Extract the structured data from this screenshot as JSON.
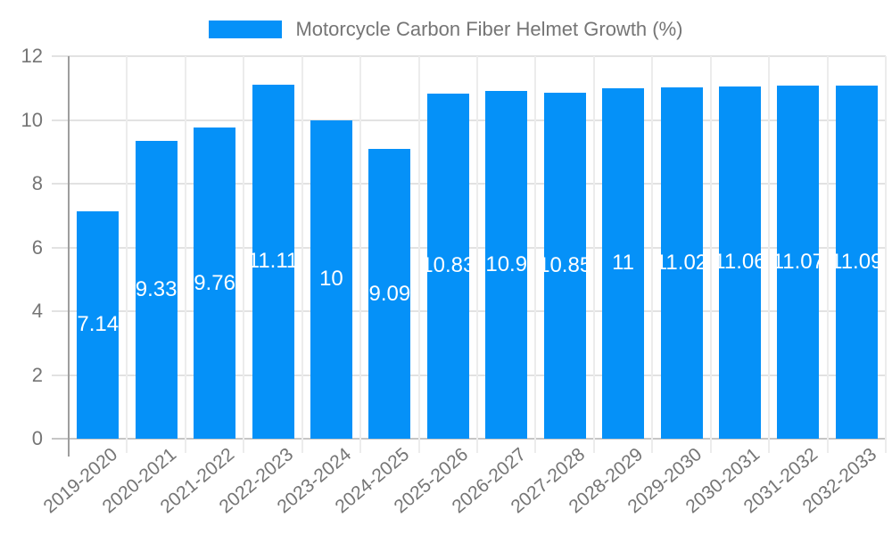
{
  "legend": {
    "label": "Motorcycle Carbon Fiber Helmet Growth (%)"
  },
  "colors": {
    "background": "#ffffff",
    "bar": "#0591f8",
    "value_label": "#ffffff",
    "tick_label": "#757575",
    "y_axis_line": "#9e9e9e",
    "x_axis_line": "#c6c6c6",
    "h_gridline": "#e2e2e2",
    "v_gridline": "#ececec"
  },
  "chart_data": {
    "type": "bar",
    "title": "Motorcycle Carbon Fiber Helmet Growth (%)",
    "categories": [
      "2019-2020",
      "2020-2021",
      "2021-2022",
      "2022-2023",
      "2023-2024",
      "2024-2025",
      "2025-2026",
      "2026-2027",
      "2027-2028",
      "2028-2029",
      "2029-2030",
      "2030-2031",
      "2031-2032",
      "2032-2033"
    ],
    "values": [
      7.14,
      9.33,
      9.76,
      11.11,
      10,
      9.09,
      10.83,
      10.9,
      10.85,
      11,
      11.02,
      11.06,
      11.07,
      11.09
    ],
    "value_labels": [
      "7.14",
      "9.33",
      "9.76",
      "11.11",
      "10",
      "9.09",
      "10.83",
      "10.9",
      "10.85",
      "11",
      "11.02",
      "11.06",
      "11.07",
      "11.09"
    ],
    "xlabel": "",
    "ylabel": "",
    "ylim": [
      0,
      12
    ],
    "yticks": [
      0,
      2,
      4,
      6,
      8,
      10,
      12
    ],
    "grid": true,
    "legend_position": "top-center",
    "value_label_position": "center-of-bar",
    "x_tick_rotation_deg": -40
  }
}
